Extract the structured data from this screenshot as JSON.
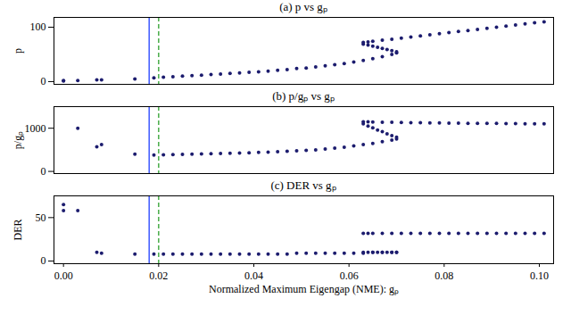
{
  "chart_data": [
    {
      "type": "scatter",
      "title": "(a) p vs gₚ",
      "y_label": "p",
      "tick_labels": "y",
      "color": "#1c1c6e",
      "marker": "circle",
      "xlim": [
        -0.002,
        0.103
      ],
      "xticks": [
        {
          "value": 0,
          "label": "0.00"
        },
        {
          "value": 0.02,
          "label": "0.02"
        },
        {
          "value": 0.04,
          "label": "0.04"
        },
        {
          "value": 0.06,
          "label": "0.06"
        },
        {
          "value": 0.08,
          "label": "0.08"
        },
        {
          "value": 0.1,
          "label": "0.10"
        }
      ],
      "ylim": [
        -5,
        118
      ],
      "yticks": [
        0,
        100
      ],
      "vlines": [
        {
          "value": 0.018,
          "color": "#1f3fff",
          "line_style": "solid"
        },
        {
          "value": 0.02,
          "color": "#2ca02c",
          "line_style": "dashed"
        }
      ],
      "x": [
        0.0,
        0.0,
        0.003,
        0.007,
        0.008,
        0.015,
        0.019,
        0.021,
        0.023,
        0.025,
        0.027,
        0.029,
        0.031,
        0.033,
        0.035,
        0.037,
        0.039,
        0.041,
        0.043,
        0.045,
        0.047,
        0.049,
        0.051,
        0.053,
        0.055,
        0.057,
        0.059,
        0.061,
        0.063,
        0.065,
        0.067,
        0.069,
        0.07,
        0.07,
        0.069,
        0.068,
        0.067,
        0.066,
        0.065,
        0.064,
        0.063,
        0.063,
        0.064,
        0.065,
        0.067,
        0.069,
        0.071,
        0.073,
        0.075,
        0.077,
        0.079,
        0.081,
        0.083,
        0.085,
        0.087,
        0.089,
        0.091,
        0.093,
        0.095,
        0.097,
        0.099,
        0.101
      ],
      "values": [
        1,
        2,
        2,
        3,
        3,
        5,
        7,
        8,
        9,
        10,
        11,
        12,
        13,
        14,
        15,
        16,
        17,
        18,
        19,
        21,
        22,
        24,
        25,
        27,
        29,
        31,
        33,
        36,
        39,
        42,
        46,
        50,
        53,
        55,
        57,
        59,
        61,
        63,
        65,
        67,
        69,
        72,
        73,
        74,
        76,
        78,
        80,
        82,
        84,
        86,
        88,
        90,
        92,
        94,
        96,
        98,
        100,
        102,
        104,
        106,
        108,
        110
      ]
    },
    {
      "type": "scatter",
      "title": "(b) p/gₚ vs gₚ",
      "y_label": "p/gₚ",
      "tick_labels": "y",
      "color": "#1c1c6e",
      "marker": "circle",
      "xlim": [
        -0.002,
        0.103
      ],
      "xticks": [
        {
          "value": 0,
          "label": "0.00"
        },
        {
          "value": 0.02,
          "label": "0.02"
        },
        {
          "value": 0.04,
          "label": "0.04"
        },
        {
          "value": 0.06,
          "label": "0.06"
        },
        {
          "value": 0.08,
          "label": "0.08"
        },
        {
          "value": 0.1,
          "label": "0.10"
        }
      ],
      "ylim": [
        -50,
        1500
      ],
      "yticks": [
        0,
        1000
      ],
      "vlines": [
        {
          "value": 0.018,
          "color": "#1f3fff",
          "line_style": "solid"
        },
        {
          "value": 0.02,
          "color": "#2ca02c",
          "line_style": "dashed"
        }
      ],
      "x": [
        0.003,
        0.007,
        0.008,
        0.015,
        0.019,
        0.021,
        0.023,
        0.025,
        0.027,
        0.029,
        0.031,
        0.033,
        0.035,
        0.037,
        0.039,
        0.041,
        0.043,
        0.045,
        0.047,
        0.049,
        0.051,
        0.053,
        0.055,
        0.057,
        0.059,
        0.061,
        0.063,
        0.065,
        0.067,
        0.069,
        0.07,
        0.07,
        0.069,
        0.068,
        0.067,
        0.066,
        0.065,
        0.064,
        0.063,
        0.063,
        0.064,
        0.065,
        0.067,
        0.069,
        0.071,
        0.073,
        0.075,
        0.077,
        0.079,
        0.081,
        0.083,
        0.085,
        0.087,
        0.089,
        0.091,
        0.093,
        0.095,
        0.097,
        0.099,
        0.101
      ],
      "values": [
        1000,
        570,
        620,
        400,
        380,
        385,
        390,
        395,
        400,
        405,
        410,
        415,
        420,
        425,
        430,
        440,
        445,
        455,
        465,
        475,
        485,
        500,
        520,
        540,
        560,
        590,
        620,
        650,
        690,
        725,
        750,
        790,
        830,
        870,
        920,
        960,
        1010,
        1050,
        1100,
        1150,
        1150,
        1145,
        1140,
        1140,
        1135,
        1130,
        1130,
        1125,
        1125,
        1120,
        1120,
        1115,
        1115,
        1110,
        1110,
        1105,
        1105,
        1100,
        1100,
        1100
      ]
    },
    {
      "type": "scatter",
      "title": "(c) DER vs gₚ",
      "y_label": "DER",
      "x_label": "Normalized Maximum Eigengap (NME): gₚ",
      "tick_labels": true,
      "color": "#1c1c6e",
      "marker": "circle",
      "xlim": [
        -0.002,
        0.103
      ],
      "xticks": [
        {
          "value": 0,
          "label": "0.00"
        },
        {
          "value": 0.02,
          "label": "0.02"
        },
        {
          "value": 0.04,
          "label": "0.04"
        },
        {
          "value": 0.06,
          "label": "0.06"
        },
        {
          "value": 0.08,
          "label": "0.08"
        },
        {
          "value": 0.1,
          "label": "0.10"
        }
      ],
      "ylim": [
        -3,
        75
      ],
      "yticks": [
        0,
        50
      ],
      "vlines": [
        {
          "value": 0.018,
          "color": "#1f3fff",
          "line_style": "solid"
        },
        {
          "value": 0.02,
          "color": "#2ca02c",
          "line_style": "dashed"
        }
      ],
      "x": [
        0.0,
        0.0,
        0.003,
        0.007,
        0.008,
        0.015,
        0.019,
        0.021,
        0.023,
        0.025,
        0.027,
        0.029,
        0.031,
        0.033,
        0.035,
        0.037,
        0.039,
        0.041,
        0.043,
        0.045,
        0.047,
        0.049,
        0.051,
        0.053,
        0.055,
        0.057,
        0.059,
        0.061,
        0.063,
        0.065,
        0.067,
        0.069,
        0.07,
        0.07,
        0.069,
        0.068,
        0.067,
        0.066,
        0.065,
        0.064,
        0.063,
        0.063,
        0.064,
        0.065,
        0.067,
        0.069,
        0.071,
        0.073,
        0.075,
        0.077,
        0.079,
        0.081,
        0.083,
        0.085,
        0.087,
        0.089,
        0.091,
        0.093,
        0.095,
        0.097,
        0.099,
        0.101
      ],
      "values": [
        65,
        58,
        58,
        10,
        9,
        8,
        8,
        8,
        8,
        8,
        8,
        8,
        8,
        8,
        8,
        8,
        8,
        8,
        8,
        8,
        8,
        9,
        9,
        9,
        9,
        9,
        9,
        9,
        9,
        10,
        10,
        10,
        10,
        10,
        10,
        10,
        10,
        10,
        10,
        10,
        10,
        32,
        32,
        32,
        32,
        32,
        32,
        32,
        32,
        32,
        32,
        32,
        32,
        32,
        32,
        32,
        32,
        32,
        32,
        32,
        32,
        32
      ]
    }
  ]
}
